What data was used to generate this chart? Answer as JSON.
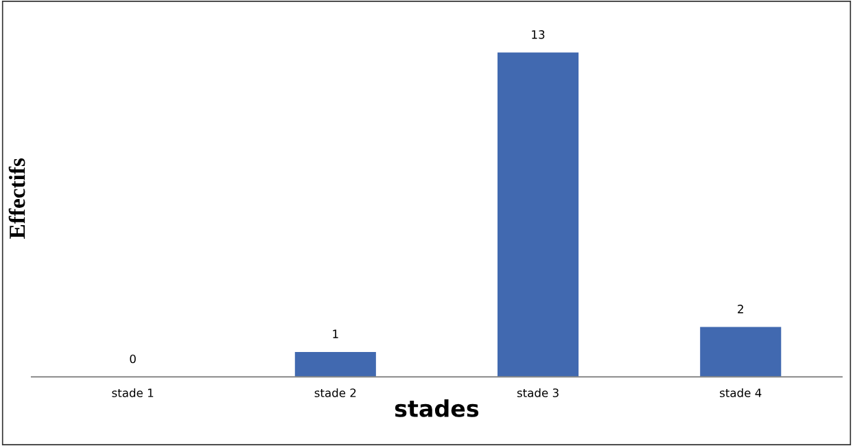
{
  "chart_data": {
    "type": "bar",
    "xlabel": "stades",
    "ylabel": "Effectifs",
    "categories": [
      "stade 1",
      "stade 2",
      "stade 3",
      "stade 4"
    ],
    "values": [
      0,
      1,
      13,
      2
    ],
    "color": "#4169b0",
    "data_labels": true,
    "grid": false,
    "legend": false
  }
}
